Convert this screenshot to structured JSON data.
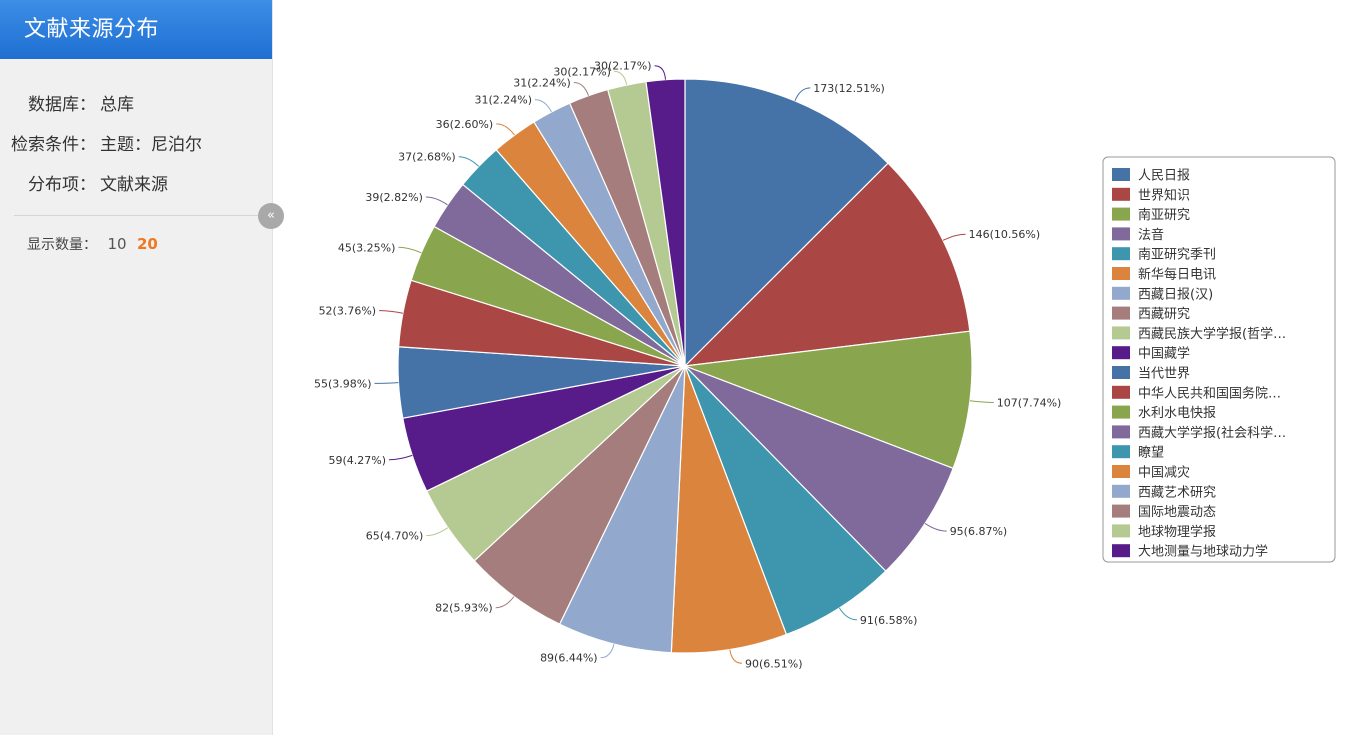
{
  "sidebar": {
    "title": "文献来源分布",
    "rows": [
      {
        "key": "数据库：",
        "value": "总库"
      },
      {
        "key": "检索条件：",
        "value": "主题：尼泊尔"
      },
      {
        "key": "分布项：",
        "value": "文献来源"
      }
    ],
    "count_label": "显示数量：",
    "count_options": [
      "10",
      "20"
    ],
    "count_selected": "20",
    "collapse_icon": "«"
  },
  "chart_data": {
    "type": "pie",
    "slices": [
      {
        "name": "人民日报",
        "value": 173,
        "label": "173(12.51%)",
        "color": "#4572a7"
      },
      {
        "name": "世界知识",
        "value": 146,
        "label": "146(10.56%)",
        "color": "#aa4643"
      },
      {
        "name": "南亚研究",
        "value": 107,
        "label": "107(7.74%)",
        "color": "#89a54e"
      },
      {
        "name": "法音",
        "value": 95,
        "label": "95(6.87%)",
        "color": "#80699b"
      },
      {
        "name": "南亚研究季刊",
        "value": 91,
        "label": "91(6.58%)",
        "color": "#3d96ae"
      },
      {
        "name": "新华每日电讯",
        "value": 90,
        "label": "90(6.51%)",
        "color": "#db843d"
      },
      {
        "name": "西藏日报(汉)",
        "value": 89,
        "label": "89(6.44%)",
        "color": "#92a8cd"
      },
      {
        "name": "西藏研究",
        "value": 82,
        "label": "82(5.93%)",
        "color": "#a47d7c"
      },
      {
        "name": "西藏民族大学学报(哲学…",
        "value": 65,
        "label": "65(4.70%)",
        "color": "#b5ca92"
      },
      {
        "name": "中国藏学",
        "value": 59,
        "label": "59(4.27%)",
        "color": "#571b8a"
      },
      {
        "name": "当代世界",
        "value": 55,
        "label": "55(3.98%)",
        "color": "#4572a7"
      },
      {
        "name": "中华人民共和国国务院…",
        "value": 52,
        "label": "52(3.76%)",
        "color": "#aa4643"
      },
      {
        "name": "水利水电快报",
        "value": 45,
        "label": "45(3.25%)",
        "color": "#89a54e"
      },
      {
        "name": "西藏大学学报(社会科学…",
        "value": 39,
        "label": "39(2.82%)",
        "color": "#80699b"
      },
      {
        "name": "瞭望",
        "value": 37,
        "label": "37(2.68%)",
        "color": "#3d96ae"
      },
      {
        "name": "中国减灾",
        "value": 36,
        "label": "36(2.60%)",
        "color": "#db843d"
      },
      {
        "name": "西藏艺术研究",
        "value": 31,
        "label": "31(2.24%)",
        "color": "#92a8cd"
      },
      {
        "name": "国际地震动态",
        "value": 31,
        "label": "31(2.24%)",
        "color": "#a47d7c"
      },
      {
        "name": "地球物理学报",
        "value": 30,
        "label": "30(2.17%)",
        "color": "#b5ca92"
      },
      {
        "name": "大地测量与地球动力学",
        "value": 30,
        "label": "30(2.17%)",
        "color": "#571b8a"
      }
    ],
    "legend_position": "right"
  }
}
